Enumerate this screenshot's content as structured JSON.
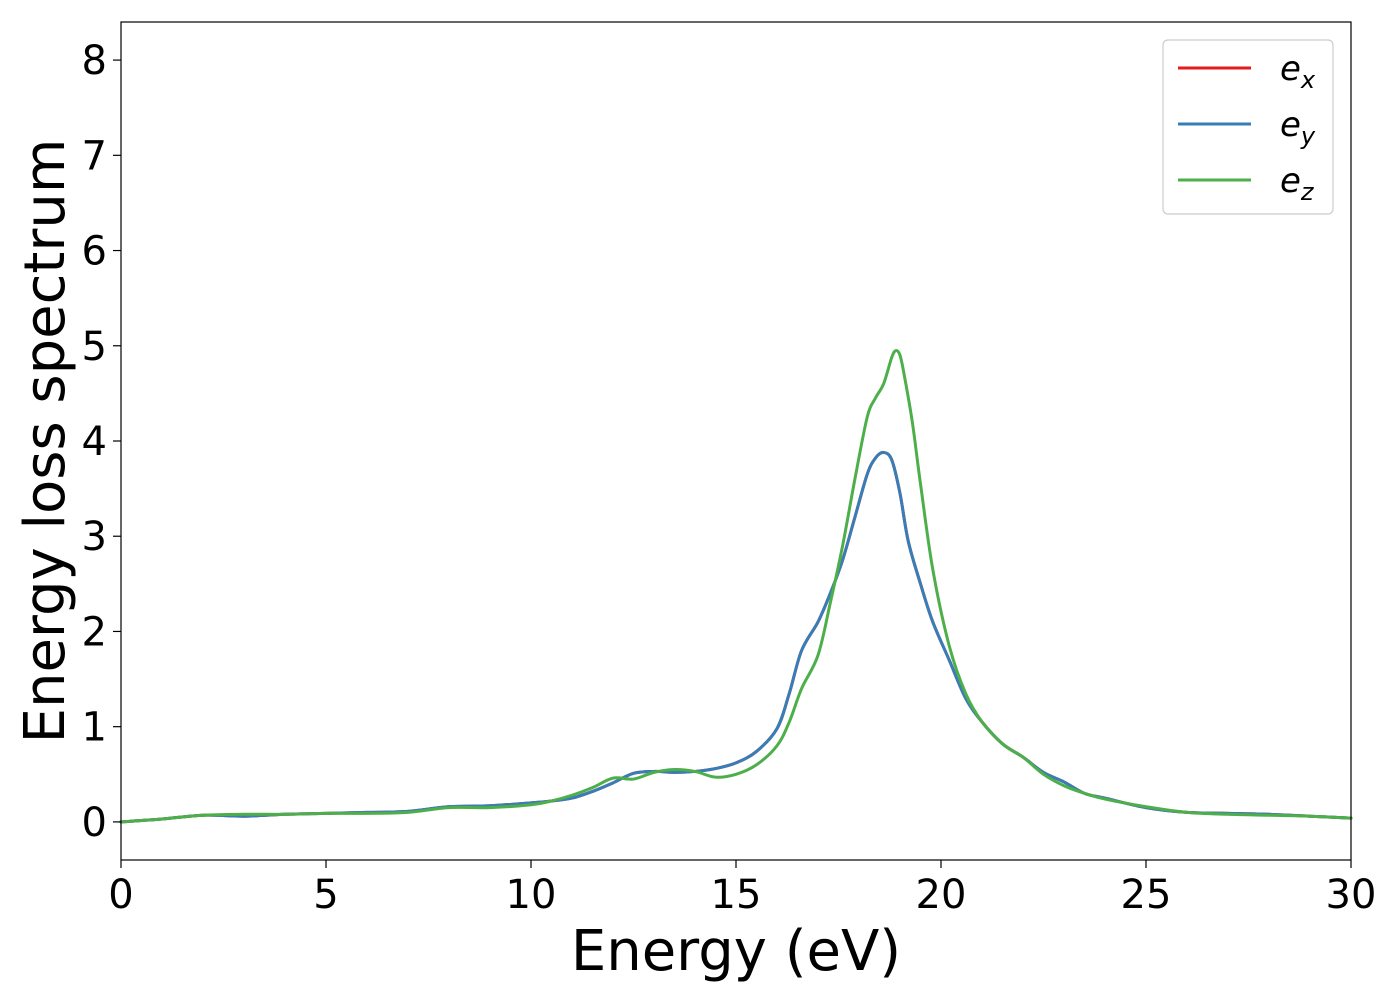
{
  "chart_data": {
    "type": "line",
    "title": "",
    "xlabel": "Energy (eV)",
    "ylabel": "Energy loss spectrum",
    "xlim": [
      0,
      30
    ],
    "ylim": [
      -0.4,
      8.4
    ],
    "xticks": [
      0,
      5,
      10,
      15,
      20,
      25,
      30
    ],
    "yticks": [
      0,
      1,
      2,
      3,
      4,
      5,
      6,
      7,
      8
    ],
    "xtick_labels": [
      "0",
      "5",
      "10",
      "15",
      "20",
      "25",
      "30"
    ],
    "ytick_labels": [
      "0",
      "1",
      "2",
      "3",
      "4",
      "5",
      "6",
      "7",
      "8"
    ],
    "grid": false,
    "legend_position": "top-right",
    "series": [
      {
        "name": "e_x",
        "legend_base": "e",
        "legend_sub": "x",
        "color": "#e41a1c",
        "x": [
          0,
          1,
          2,
          3,
          4,
          5,
          6,
          7,
          8,
          9,
          10,
          10.5,
          11,
          11.5,
          12,
          12.5,
          13,
          13.5,
          14,
          14.5,
          15,
          15.5,
          16,
          16.3,
          16.6,
          17,
          17.3,
          17.6,
          17.9,
          18.2,
          18.4,
          18.6,
          18.8,
          19.0,
          19.2,
          19.5,
          19.8,
          20.2,
          20.6,
          21,
          21.5,
          22,
          22.5,
          23,
          23.5,
          24,
          25,
          26,
          27,
          28,
          29,
          30
        ],
        "y": [
          0,
          0.03,
          0.07,
          0.06,
          0.08,
          0.09,
          0.1,
          0.11,
          0.16,
          0.17,
          0.2,
          0.22,
          0.25,
          0.32,
          0.41,
          0.51,
          0.53,
          0.52,
          0.53,
          0.56,
          0.62,
          0.74,
          0.98,
          1.35,
          1.8,
          2.1,
          2.4,
          2.75,
          3.2,
          3.65,
          3.82,
          3.88,
          3.8,
          3.45,
          2.95,
          2.5,
          2.1,
          1.7,
          1.3,
          1.05,
          0.82,
          0.68,
          0.52,
          0.42,
          0.3,
          0.25,
          0.15,
          0.1,
          0.09,
          0.08,
          0.06,
          0.04
        ]
      },
      {
        "name": "e_y",
        "legend_base": "e",
        "legend_sub": "y",
        "color": "#377eb8",
        "x": [
          0,
          1,
          2,
          3,
          4,
          5,
          6,
          7,
          8,
          9,
          10,
          10.5,
          11,
          11.5,
          12,
          12.5,
          13,
          13.5,
          14,
          14.5,
          15,
          15.5,
          16,
          16.3,
          16.6,
          17,
          17.3,
          17.6,
          17.9,
          18.2,
          18.4,
          18.6,
          18.8,
          19.0,
          19.2,
          19.5,
          19.8,
          20.2,
          20.6,
          21,
          21.5,
          22,
          22.5,
          23,
          23.5,
          24,
          25,
          26,
          27,
          28,
          29,
          30
        ],
        "y": [
          0,
          0.03,
          0.07,
          0.06,
          0.08,
          0.09,
          0.1,
          0.11,
          0.16,
          0.17,
          0.2,
          0.22,
          0.25,
          0.32,
          0.41,
          0.51,
          0.53,
          0.52,
          0.53,
          0.56,
          0.62,
          0.74,
          0.98,
          1.35,
          1.8,
          2.1,
          2.4,
          2.75,
          3.2,
          3.65,
          3.82,
          3.88,
          3.8,
          3.45,
          2.95,
          2.5,
          2.1,
          1.7,
          1.3,
          1.05,
          0.82,
          0.68,
          0.52,
          0.42,
          0.3,
          0.25,
          0.15,
          0.1,
          0.09,
          0.08,
          0.06,
          0.04
        ]
      },
      {
        "name": "e_z",
        "legend_base": "e",
        "legend_sub": "z",
        "color": "#4daf4a",
        "x": [
          0,
          1,
          2,
          3,
          4,
          5,
          6,
          7,
          8,
          9,
          10,
          10.5,
          11,
          11.5,
          12,
          12.5,
          13,
          13.5,
          14,
          14.5,
          15,
          15.5,
          16,
          16.3,
          16.6,
          17,
          17.3,
          17.6,
          17.9,
          18.2,
          18.4,
          18.6,
          18.8,
          18.9,
          19.0,
          19.1,
          19.3,
          19.5,
          19.8,
          20.2,
          20.6,
          21,
          21.5,
          22,
          22.5,
          23,
          23.5,
          24,
          25,
          26,
          27,
          28,
          29,
          30
        ],
        "y": [
          0,
          0.03,
          0.07,
          0.08,
          0.08,
          0.09,
          0.09,
          0.1,
          0.15,
          0.15,
          0.18,
          0.22,
          0.28,
          0.36,
          0.46,
          0.45,
          0.52,
          0.55,
          0.53,
          0.47,
          0.5,
          0.6,
          0.8,
          1.05,
          1.4,
          1.75,
          2.3,
          2.9,
          3.6,
          4.25,
          4.45,
          4.6,
          4.88,
          4.95,
          4.9,
          4.7,
          4.2,
          3.55,
          2.65,
          1.85,
          1.35,
          1.05,
          0.82,
          0.68,
          0.5,
          0.38,
          0.3,
          0.24,
          0.16,
          0.1,
          0.08,
          0.07,
          0.06,
          0.04
        ]
      }
    ]
  }
}
